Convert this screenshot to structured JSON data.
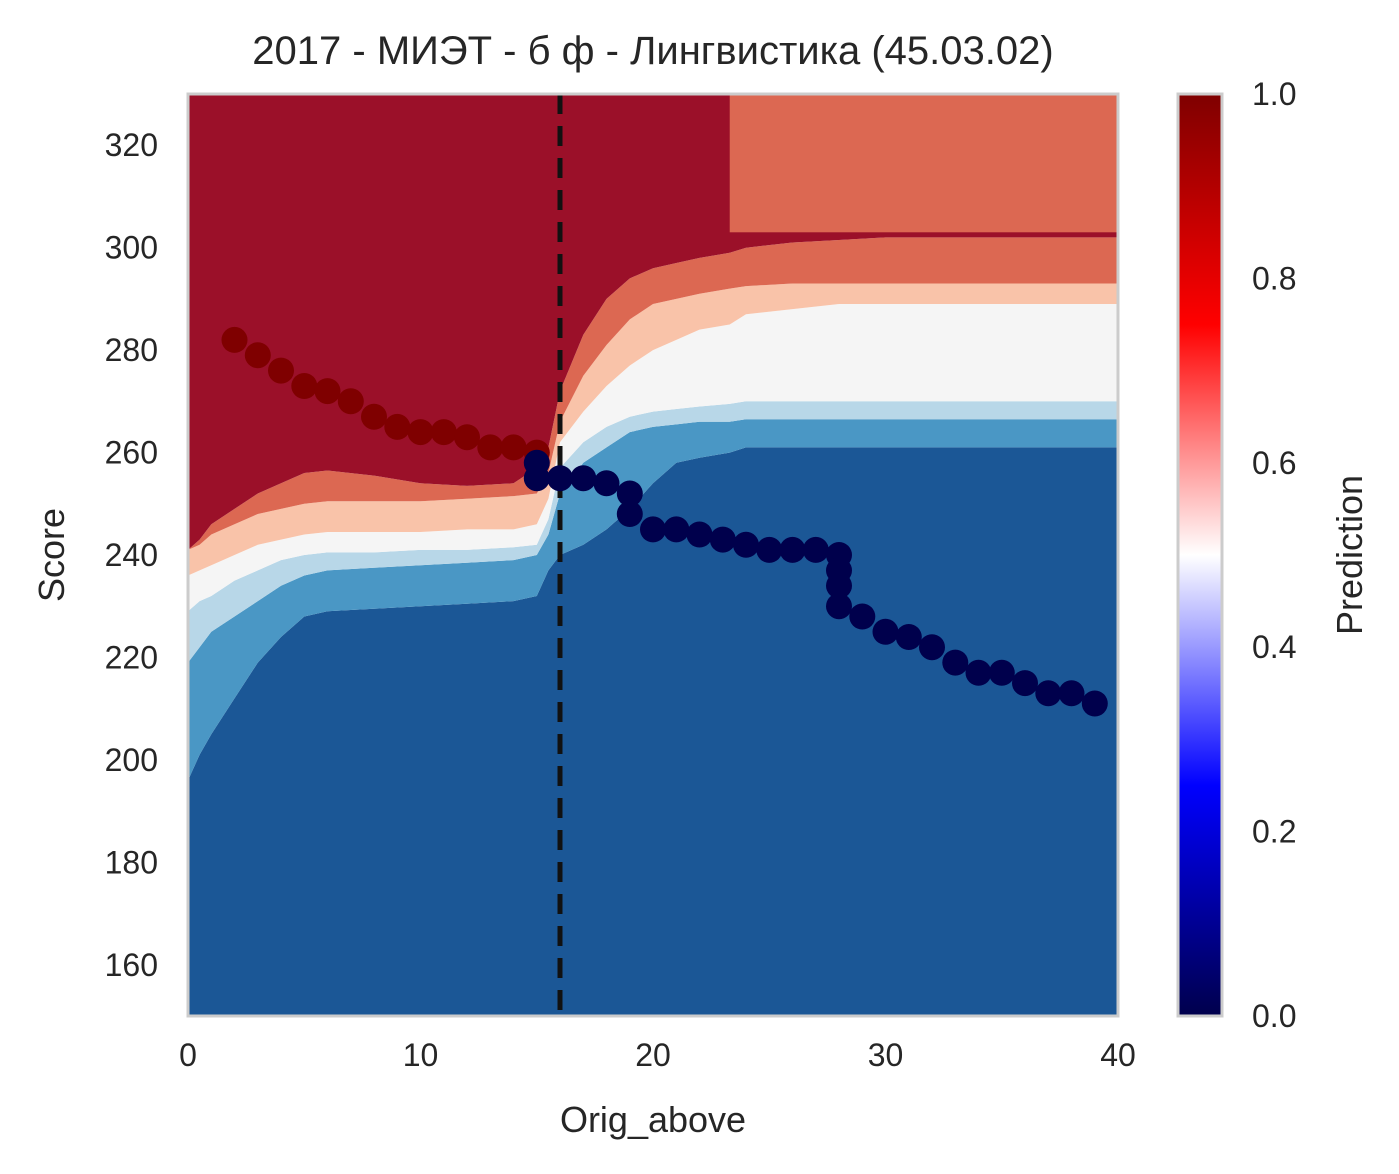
{
  "chart_data": {
    "type": "heatmap",
    "subtype": "filled-contour with scatter overlay",
    "title": "2017 - МИЭТ - б ф - Лингвистика (45.03.02)",
    "xlabel": "Orig_above",
    "ylabel": "Score",
    "xlim": [
      0,
      40
    ],
    "ylim": [
      150,
      330
    ],
    "xticks": [
      "0",
      "10",
      "20",
      "30",
      "40"
    ],
    "yticks": [
      "160",
      "180",
      "200",
      "220",
      "240",
      "260",
      "280",
      "300",
      "320"
    ],
    "grid": false,
    "vertical_line": {
      "x": 16,
      "style": "dashed",
      "color": "#111111"
    },
    "colorbar": {
      "label": "Prediction",
      "range": [
        0.0,
        1.0
      ],
      "ticks": [
        "0.0",
        "0.2",
        "0.4",
        "0.6",
        "0.8",
        "1.0"
      ],
      "colormap": "seismic"
    },
    "contour_levels": [
      {
        "name": "level-0",
        "color": "#1b5796"
      },
      {
        "name": "level-1",
        "color": "#4a97c5"
      },
      {
        "name": "level-2",
        "color": "#b8d7e8"
      },
      {
        "name": "level-3",
        "color": "#f5f5f5"
      },
      {
        "name": "level-4",
        "color": "#f9c3a9"
      },
      {
        "name": "level-5",
        "color": "#dc6852"
      },
      {
        "name": "level-6",
        "color": "#9b1029"
      }
    ],
    "boundaries": {
      "x": [
        0,
        0.5,
        1,
        2,
        3,
        4,
        5,
        6,
        8,
        10,
        12,
        14,
        15,
        15.5,
        16,
        17,
        18,
        19,
        20,
        21,
        22,
        23.3,
        24,
        26,
        28,
        30,
        33,
        36,
        40
      ],
      "b1": [
        196,
        201,
        205,
        212,
        219,
        224,
        228,
        229,
        229.5,
        230,
        230.5,
        231,
        232,
        237,
        240,
        242,
        245,
        249,
        254,
        258,
        259,
        260,
        261,
        261,
        261,
        261,
        261,
        261,
        261
      ],
      "b2": [
        219,
        222,
        225,
        228,
        231,
        234,
        236,
        237,
        237.5,
        238,
        238.5,
        239,
        240,
        244,
        252,
        258,
        261,
        264,
        265,
        265.5,
        266,
        266,
        266.5,
        266.5,
        266.5,
        266.5,
        266.5,
        266.5,
        266.5
      ],
      "b3": [
        229,
        231,
        232,
        235,
        237,
        239,
        240,
        240.5,
        240.5,
        241,
        241,
        241.5,
        242,
        247,
        257,
        262,
        265,
        267,
        268,
        268.5,
        269,
        269.5,
        270,
        270,
        270,
        270,
        270,
        270,
        270
      ],
      "b4": [
        236,
        237,
        238,
        240,
        242,
        243,
        244,
        244.5,
        244.5,
        244.5,
        245,
        245,
        246,
        251,
        262,
        268,
        273,
        277,
        280,
        282,
        284,
        285,
        287,
        288,
        289,
        289,
        289,
        289,
        289
      ],
      "b5": [
        241,
        242,
        244,
        246,
        248,
        249,
        250,
        250.5,
        250.5,
        250.5,
        251,
        251.5,
        252,
        256,
        266,
        275,
        281,
        286,
        289,
        290,
        291,
        292,
        292.5,
        293,
        293,
        293,
        293,
        293,
        293
      ],
      "b6": [
        241,
        243,
        246,
        249,
        252,
        254,
        256,
        256.5,
        255.5,
        254,
        253.5,
        254,
        257,
        261,
        272,
        283,
        290,
        294,
        296,
        297,
        298,
        299,
        300,
        301,
        301.5,
        302,
        302,
        302,
        302
      ]
    },
    "upper_right_region": {
      "x_from": 23.3,
      "y_from": 303,
      "level": "level-5"
    },
    "series": [
      {
        "marker_color": "#7f0000",
        "points": [
          [
            2,
            282
          ],
          [
            3,
            279
          ],
          [
            4,
            276
          ],
          [
            5,
            273
          ],
          [
            6,
            272
          ],
          [
            7,
            270
          ],
          [
            8,
            267
          ],
          [
            9,
            265
          ],
          [
            10,
            264
          ],
          [
            11,
            264
          ],
          [
            12,
            263
          ],
          [
            13,
            261
          ],
          [
            14,
            261
          ],
          [
            15,
            260
          ]
        ]
      },
      {
        "marker_color": "#00004c",
        "points": [
          [
            15,
            258
          ],
          [
            15,
            255
          ],
          [
            16,
            255
          ],
          [
            17,
            255
          ],
          [
            18,
            254
          ],
          [
            19,
            252
          ],
          [
            19,
            248
          ],
          [
            20,
            245
          ],
          [
            21,
            245
          ],
          [
            22,
            244
          ],
          [
            23,
            243
          ],
          [
            24,
            242
          ],
          [
            25,
            241
          ],
          [
            26,
            241
          ],
          [
            27,
            241
          ],
          [
            28,
            240
          ],
          [
            28,
            237
          ],
          [
            28,
            234
          ],
          [
            28,
            230
          ],
          [
            29,
            228
          ],
          [
            30,
            225
          ],
          [
            31,
            224
          ],
          [
            32,
            222
          ],
          [
            33,
            219
          ],
          [
            34,
            217
          ],
          [
            35,
            217
          ],
          [
            36,
            215
          ],
          [
            37,
            213
          ],
          [
            38,
            213
          ],
          [
            39,
            211
          ]
        ]
      }
    ]
  }
}
